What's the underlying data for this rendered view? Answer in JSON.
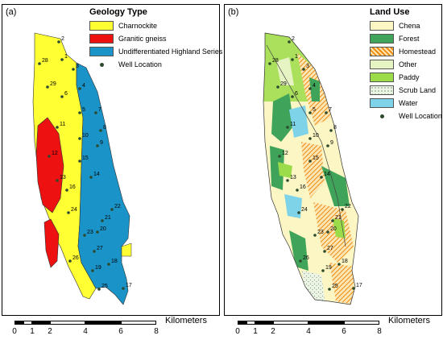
{
  "panel_a": {
    "label": "(a)",
    "legend": {
      "title": "Geology Type",
      "items": [
        {
          "label": "Charnockite",
          "color": "#ffff33"
        },
        {
          "label": "Granitic gneiss",
          "color": "#ee1111"
        },
        {
          "label": "Undifferentiated Highland Series",
          "color": "#1a93c8"
        },
        {
          "label": "Well Location",
          "color": "#2e4a2e"
        }
      ]
    }
  },
  "panel_b": {
    "label": "(b)",
    "legend": {
      "title": "Land Use",
      "items": [
        {
          "label": "Chena",
          "color": "#fbf6c3"
        },
        {
          "label": "Forest",
          "color": "#3fa35a"
        },
        {
          "label": "Homestead",
          "color": "#f5a623"
        },
        {
          "label": "Other",
          "color": "#e6f3c2"
        },
        {
          "label": "Paddy",
          "color": "#9cdc4a"
        },
        {
          "label": "Scrub Land",
          "color": "#eef4e6"
        },
        {
          "label": "Water",
          "color": "#7fd3e8"
        },
        {
          "label": "Well Location",
          "color": "#2e4a2e"
        }
      ]
    }
  },
  "wells": [
    "1",
    "2",
    "3",
    "4",
    "5",
    "6",
    "7",
    "8",
    "9",
    "10",
    "11",
    "12",
    "13",
    "14",
    "15",
    "16",
    "17",
    "18",
    "19",
    "20",
    "21",
    "22",
    "23",
    "24",
    "25",
    "26",
    "27",
    "28",
    "29"
  ],
  "scale_bar": {
    "unit": "Kilometers",
    "ticks": [
      "0",
      "1",
      "2",
      "4",
      "6",
      "8"
    ]
  }
}
